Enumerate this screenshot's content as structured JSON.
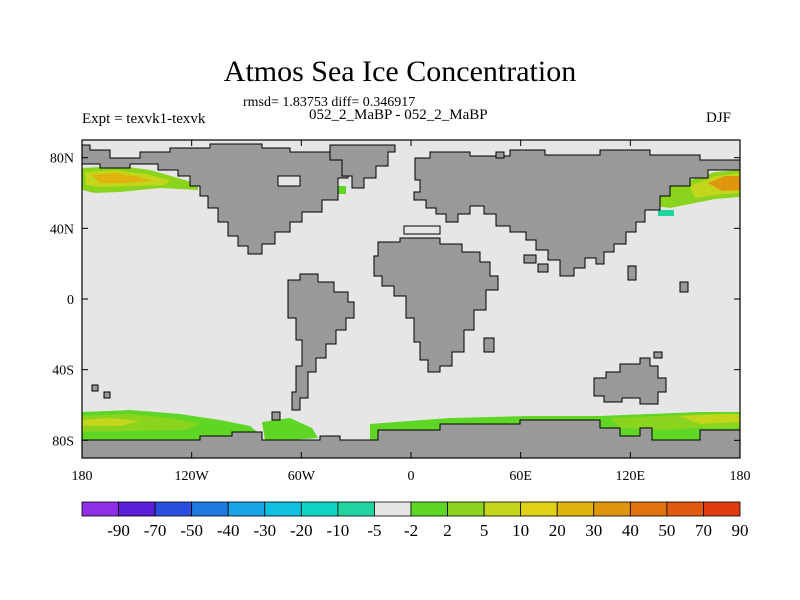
{
  "title": "Atmos Sea Ice Concentration",
  "stats_line": "rmsd= 1.83753 diff= 0.346917",
  "experiment": {
    "left_label": "Expt = texvk1-texvk",
    "center_label": "052_2_MaBP - 052_2_MaBP",
    "season": "DJF"
  },
  "map": {
    "projection": "cylindrical-equidistant",
    "lon_range": [
      -180,
      180
    ],
    "lat_range": [
      -90,
      90
    ],
    "land_color": "#999999",
    "ocean_color": "#e6e6e6",
    "lon_ticks": [
      {
        "value": -180,
        "label": "180"
      },
      {
        "value": -120,
        "label": "120W"
      },
      {
        "value": -60,
        "label": "60W"
      },
      {
        "value": 0,
        "label": "0"
      },
      {
        "value": 60,
        "label": "60E"
      },
      {
        "value": 120,
        "label": "120E"
      },
      {
        "value": 180,
        "label": "180"
      }
    ],
    "lat_ticks": [
      {
        "value": 80,
        "label": "80N"
      },
      {
        "value": 40,
        "label": "40N"
      },
      {
        "value": 0,
        "label": "0"
      },
      {
        "value": -40,
        "label": "40S"
      },
      {
        "value": -80,
        "label": "80S"
      }
    ]
  },
  "colorbar": {
    "colors": [
      "#8f2ee6",
      "#5a1fd6",
      "#2a4fe0",
      "#1f7ae0",
      "#19a5e6",
      "#11bfe0",
      "#0fd4c4",
      "#20d49f",
      "#e6e6e6",
      "#5fd626",
      "#8ad41d",
      "#c4d61b",
      "#e0d114",
      "#e0b30f",
      "#e0950f",
      "#e0730f",
      "#e05a0f",
      "#e03b0f"
    ],
    "labels": [
      "-90",
      "-70",
      "-50",
      "-40",
      "-30",
      "-20",
      "-10",
      "-5",
      "-2",
      "2",
      "5",
      "10",
      "20",
      "30",
      "40",
      "50",
      "70",
      "90"
    ]
  }
}
